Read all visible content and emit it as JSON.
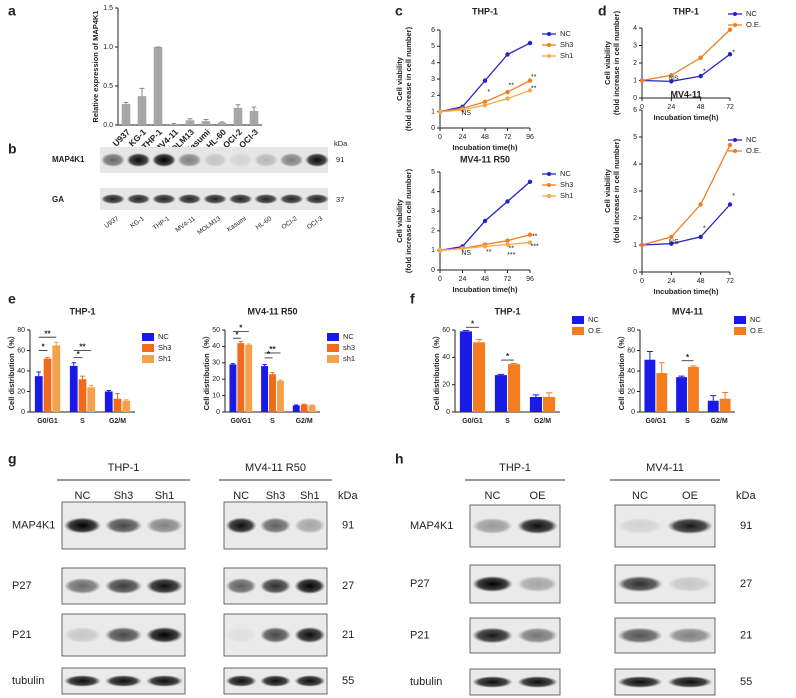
{
  "panel_labels": [
    "a",
    "b",
    "c",
    "d",
    "e",
    "f",
    "g",
    "h"
  ],
  "chart_data": [
    {
      "type": "bar",
      "categories": [
        "U937",
        "KG-1",
        "THP-1",
        "MV4-11",
        "MOLM13",
        "Kasumi",
        "HL-60",
        "OCI-2",
        "OCI-3"
      ],
      "ylabel": [
        "Relative expression of MAP4K1"
      ],
      "series": [
        {
          "name": null,
          "color": "#a6a6a6",
          "values": [
            0.27,
            0.37,
            1.0,
            0.01,
            0.06,
            0.05,
            0.03,
            0.22,
            0.18
          ],
          "errors": [
            0.02,
            0.1,
            0,
            0.01,
            0.02,
            0.02,
            0.01,
            0.04,
            0.05
          ]
        }
      ],
      "ylim": [
        0,
        1.5
      ],
      "yticks": [
        {
          "value": 0,
          "label": "0.0"
        },
        {
          "value": 0.5,
          "label": "0.5"
        },
        {
          "value": 1,
          "label": "1.0"
        },
        {
          "value": 1.5,
          "label": "1.5"
        }
      ]
    },
    {
      "type": "line",
      "title": "THP-1",
      "x": [
        0,
        24,
        48,
        72,
        96
      ],
      "xlabel": "Incubation time(h)",
      "ylabel": [
        "Cell viability",
        "(fold increase in cell number)"
      ],
      "series": [
        {
          "name": "NC",
          "color": "#2323c8",
          "values": [
            1,
            1.3,
            2.9,
            4.5,
            5.2
          ]
        },
        {
          "name": "Sh3",
          "color": "#f07d20",
          "values": [
            1,
            1.2,
            1.6,
            2.2,
            2.9
          ]
        },
        {
          "name": "Sh1",
          "color": "#f5a94a",
          "values": [
            1,
            1.1,
            1.4,
            1.8,
            2.3
          ]
        }
      ],
      "xlim": [
        0,
        96
      ],
      "xticks": [
        0,
        24,
        48,
        72,
        96
      ],
      "ylim": [
        0,
        6
      ],
      "yticks": [
        0,
        1,
        2,
        3,
        4,
        5,
        6
      ],
      "annotations": [
        {
          "text": "NS",
          "x": 28,
          "y": 0.9
        },
        {
          "text": "*",
          "x": 52,
          "y": 2.2
        },
        {
          "text": "**",
          "x": 76,
          "y": 2.6
        },
        {
          "text": "**",
          "x": 100,
          "y": 3.1
        },
        {
          "text": "**",
          "x": 100,
          "y": 2.4
        }
      ]
    },
    {
      "type": "line",
      "title": "MV4-11 R50",
      "x": [
        0,
        24,
        48,
        72,
        96
      ],
      "xlabel": "Incubation time(h)",
      "ylabel": [
        "Cell viability",
        "(fold increase in cell number)"
      ],
      "series": [
        {
          "name": "NC",
          "color": "#2323c8",
          "values": [
            1,
            1.2,
            2.5,
            3.5,
            4.5
          ]
        },
        {
          "name": "Sh3",
          "color": "#f07d20",
          "values": [
            1,
            1.1,
            1.3,
            1.5,
            1.8
          ]
        },
        {
          "name": "Sh1",
          "color": "#f5a94a",
          "values": [
            1,
            1.1,
            1.2,
            1.3,
            1.4
          ]
        }
      ],
      "xlim": [
        0,
        96
      ],
      "xticks": [
        0,
        24,
        48,
        72,
        96
      ],
      "ylim": [
        0,
        5
      ],
      "yticks": [
        0,
        1,
        2,
        3,
        4,
        5
      ],
      "annotations": [
        {
          "text": "NS",
          "x": 28,
          "y": 0.85
        },
        {
          "text": "**",
          "x": 52,
          "y": 0.9
        },
        {
          "text": "**",
          "x": 76,
          "y": 1.1
        },
        {
          "text": "***",
          "x": 76,
          "y": 0.75
        },
        {
          "text": "**",
          "x": 101,
          "y": 1.7
        },
        {
          "text": "***",
          "x": 101,
          "y": 1.2
        }
      ]
    },
    {
      "type": "line",
      "title": "THP-1",
      "x": [
        0,
        24,
        48,
        72
      ],
      "xlabel": "Incubation time(h)",
      "ylabel": [
        "Cell viability",
        "(fold increase in cell number)"
      ],
      "series": [
        {
          "name": "NC",
          "color": "#2323c8",
          "values": [
            1,
            0.95,
            1.25,
            2.5
          ]
        },
        {
          "name": "O.E.",
          "color": "#f07d20",
          "values": [
            1,
            1.3,
            2.3,
            3.9
          ]
        }
      ],
      "xlim": [
        0,
        72
      ],
      "xticks": [
        0,
        24,
        48,
        72
      ],
      "ylim": [
        0,
        4
      ],
      "yticks": [
        0,
        1,
        2,
        3,
        4
      ],
      "annotations": [
        {
          "text": "NS",
          "x": 26,
          "y": 1.1
        },
        {
          "text": "*",
          "x": 51,
          "y": 1.5
        },
        {
          "text": "*",
          "x": 75,
          "y": 2.6
        }
      ]
    },
    {
      "type": "line",
      "title": "MV4-11",
      "x": [
        0,
        24,
        48,
        72
      ],
      "xlabel": "Incubation time(h)",
      "ylabel": [
        "Cell viability",
        "(fold increase in cell number)"
      ],
      "series": [
        {
          "name": "NC",
          "color": "#2323c8",
          "values": [
            1,
            1.05,
            1.3,
            2.5
          ]
        },
        {
          "name": "O.E.",
          "color": "#f07d20",
          "values": [
            1,
            1.3,
            2.5,
            4.7
          ]
        }
      ],
      "xlim": [
        0,
        72
      ],
      "xticks": [
        0,
        24,
        48,
        72
      ],
      "ylim": [
        0,
        6
      ],
      "yticks": [
        0,
        1,
        2,
        3,
        4,
        5,
        6
      ],
      "annotations": [
        {
          "text": "NS",
          "x": 26,
          "y": 1.1
        },
        {
          "text": "*",
          "x": 51,
          "y": 1.6
        },
        {
          "text": "*",
          "x": 75,
          "y": 2.8
        }
      ]
    },
    {
      "type": "bar",
      "title": "THP-1",
      "categories": [
        "G0/G1",
        "S",
        "G2/M"
      ],
      "ylabel": [
        "Cell distribution（%）"
      ],
      "series": [
        {
          "name": "NC",
          "color": "#1a1ae6",
          "values": [
            35,
            45,
            20
          ],
          "errors": [
            4,
            3,
            1
          ]
        },
        {
          "name": "Sh3",
          "color": "#f26b1d",
          "values": [
            52,
            32,
            13
          ],
          "errors": [
            1,
            3,
            5
          ]
        },
        {
          "name": "Sh1",
          "color": "#f5a04a",
          "values": [
            65,
            24,
            11
          ],
          "errors": [
            3,
            2,
            1
          ]
        }
      ],
      "ylim": [
        0,
        80
      ],
      "yticks": [
        0,
        20,
        40,
        60,
        80
      ],
      "annotations": [
        {
          "text": "*",
          "category": 0,
          "y": 60
        },
        {
          "text": "**",
          "category": 0,
          "y": 73
        },
        {
          "text": "*",
          "category": 1,
          "y": 53
        },
        {
          "text": "**",
          "category": 1,
          "y": 60
        }
      ]
    },
    {
      "type": "bar",
      "title": "MV4-11 R50",
      "categories": [
        "G0/G1",
        "S",
        "G2/M"
      ],
      "ylabel": [
        "Cell distribution（%）"
      ],
      "series": [
        {
          "name": "NC",
          "color": "#1a1ae6",
          "values": [
            29,
            28,
            4
          ],
          "errors": [
            0.5,
            1,
            0.3
          ]
        },
        {
          "name": "sh3",
          "color": "#f26b1d",
          "values": [
            42,
            23,
            4.5
          ],
          "errors": [
            1,
            1,
            0.3
          ]
        },
        {
          "name": "sh1",
          "color": "#f5a04a",
          "values": [
            41,
            19,
            4
          ],
          "errors": [
            0.5,
            0.5,
            0.3
          ]
        }
      ],
      "ylim": [
        0,
        50
      ],
      "yticks": [
        0,
        10,
        20,
        30,
        40,
        50
      ],
      "annotations": [
        {
          "text": "*",
          "category": 0,
          "y": 45
        },
        {
          "text": "*",
          "category": 0,
          "y": 49
        },
        {
          "text": "*",
          "category": 1,
          "y": 33
        },
        {
          "text": "**",
          "category": 1,
          "y": 36
        }
      ]
    },
    {
      "type": "bar",
      "title": "THP-1",
      "categories": [
        "G0/G1",
        "S",
        "G2/M"
      ],
      "ylabel": [
        "Cell distribution（%）"
      ],
      "series": [
        {
          "name": "NC",
          "color": "#1a1ae6",
          "values": [
            59,
            27,
            11
          ],
          "errors": [
            0.5,
            0.5,
            1.5
          ]
        },
        {
          "name": "O.E.",
          "color": "#f47d20",
          "values": [
            51,
            35,
            11
          ],
          "errors": [
            2,
            0.5,
            3
          ]
        }
      ],
      "ylim": [
        0,
        60
      ],
      "yticks": [
        0,
        20,
        40,
        60
      ],
      "annotations": [
        {
          "text": "*",
          "category": 0,
          "y": 62
        },
        {
          "text": "*",
          "category": 1,
          "y": 38
        }
      ]
    },
    {
      "type": "bar",
      "title": "MV4-11",
      "categories": [
        "G0/G1",
        "S",
        "G2/M"
      ],
      "ylabel": [
        "Cell distribution（%）"
      ],
      "series": [
        {
          "name": "NC",
          "color": "#1a1ae6",
          "values": [
            51,
            34,
            11
          ],
          "errors": [
            8,
            1,
            5
          ]
        },
        {
          "name": "O.E.",
          "color": "#f47d20",
          "values": [
            38,
            44,
            13
          ],
          "errors": [
            10,
            1,
            6
          ]
        }
      ],
      "ylim": [
        0,
        80
      ],
      "yticks": [
        0,
        20,
        40,
        60,
        80
      ],
      "annotations": [
        {
          "text": "*",
          "category": 1,
          "y": 50
        }
      ]
    }
  ],
  "blots": {
    "b": {
      "lanes": [
        "U937",
        "KG-1",
        "THP-1",
        "MV4-11",
        "MOLM13",
        "Kasumi",
        "HL-60",
        "OCI-2",
        "OCI-3"
      ],
      "unit": "kDa",
      "rows": [
        {
          "label": "MAP4K1",
          "kda": "91"
        },
        {
          "label": "GA",
          "kda": "37"
        }
      ]
    },
    "g": {
      "groups": [
        {
          "title": "THP-1",
          "lanes": [
            "NC",
            "Sh3",
            "Sh1"
          ]
        },
        {
          "title": "MV4-11 R50",
          "lanes": [
            "NC",
            "Sh3",
            "Sh1"
          ]
        }
      ],
      "unit": "kDa",
      "rows": [
        {
          "label": "MAP4K1",
          "kda": "91"
        },
        {
          "label": "P27",
          "kda": "27"
        },
        {
          "label": "P21",
          "kda": "21"
        },
        {
          "label": "tubulin",
          "kda": "55"
        }
      ]
    },
    "h": {
      "groups": [
        {
          "title": "THP-1",
          "lanes": [
            "NC",
            "OE"
          ]
        },
        {
          "title": "MV4-11",
          "lanes": [
            "NC",
            "OE"
          ]
        }
      ],
      "unit": "kDa",
      "rows": [
        {
          "label": "MAP4K1",
          "kda": "91"
        },
        {
          "label": "P27",
          "kda": "27"
        },
        {
          "label": "P21",
          "kda": "21"
        },
        {
          "label": "tubulin",
          "kda": "55"
        }
      ]
    }
  }
}
